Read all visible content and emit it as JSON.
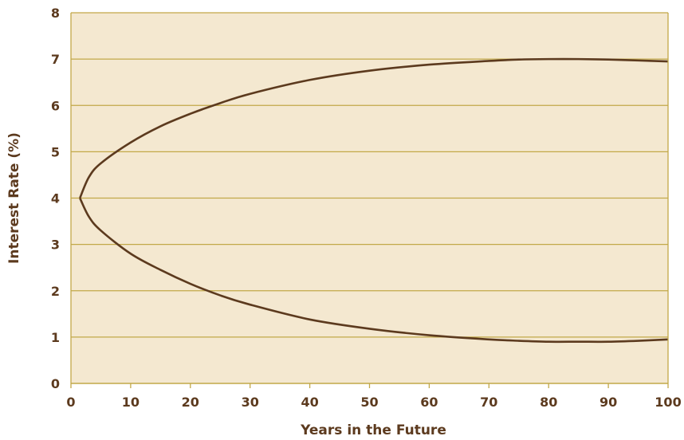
{
  "chart_data": {
    "type": "line",
    "title": "",
    "xlabel": "Years in the Future",
    "ylabel": "Interest Rate (%)",
    "xlim": [
      0,
      100
    ],
    "ylim": [
      0,
      8
    ],
    "x_ticks": [
      0,
      10,
      20,
      30,
      40,
      50,
      60,
      70,
      80,
      90,
      100
    ],
    "y_ticks": [
      0,
      1,
      2,
      3,
      4,
      5,
      6,
      7,
      8
    ],
    "grid": "horizontal",
    "legend": "none",
    "colors": {
      "plot_background": "#f4e8d0",
      "gridline": "#c2a848",
      "line": "#5c3a1e",
      "text": "#5c3a1e"
    },
    "series": [
      {
        "x": [
          1.5,
          3,
          5,
          10,
          15,
          20,
          25,
          30,
          40,
          50,
          60,
          70,
          75,
          80,
          85,
          90,
          95,
          100
        ],
        "values": [
          4.0,
          4.45,
          4.75,
          5.2,
          5.55,
          5.82,
          6.05,
          6.25,
          6.55,
          6.75,
          6.88,
          6.96,
          6.99,
          7.0,
          7.0,
          6.99,
          6.97,
          6.95
        ]
      },
      {
        "x": [
          1.5,
          3,
          5,
          10,
          15,
          20,
          25,
          30,
          40,
          50,
          60,
          70,
          75,
          80,
          85,
          90,
          95,
          100
        ],
        "values": [
          4.0,
          3.6,
          3.3,
          2.8,
          2.45,
          2.15,
          1.9,
          1.7,
          1.38,
          1.18,
          1.04,
          0.95,
          0.92,
          0.9,
          0.9,
          0.9,
          0.92,
          0.95
        ]
      }
    ]
  }
}
